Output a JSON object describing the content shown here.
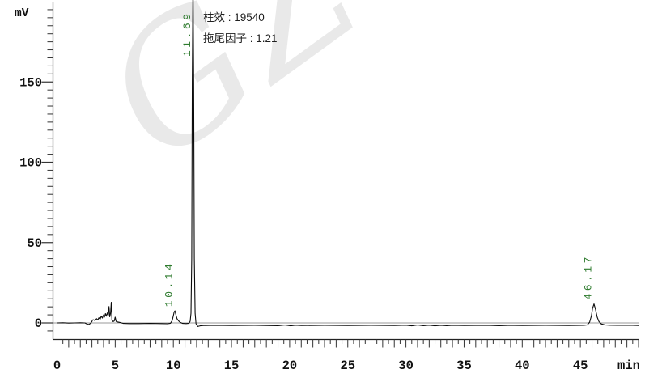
{
  "watermark": {
    "text": "GZ"
  },
  "chart_data": {
    "type": "line",
    "title": "",
    "xlabel": "min",
    "ylabel": "mV",
    "xlim": [
      0,
      50.3
    ],
    "ylim": [
      -10,
      201
    ],
    "x_major_ticks": [
      0,
      5,
      10,
      15,
      20,
      25,
      30,
      35,
      40,
      45
    ],
    "x_minor_tick_step": 0.5,
    "y_major_ticks": [
      0,
      50,
      100,
      150
    ],
    "y_minor_tick_step": 5,
    "zero_baseline": true,
    "legend": "none",
    "grid": "off",
    "annotations": [
      "柱效 : 19540",
      "拖尾因子 : 1.21"
    ],
    "peaks": [
      {
        "label": "10.14",
        "retention_min": 10.14,
        "apex_mv": 7.5,
        "clipped_at_top": false
      },
      {
        "label": "11.69",
        "retention_min": 11.69,
        "apex_mv": 215,
        "clipped_at_top": true
      },
      {
        "label": "46.17",
        "retention_min": 46.17,
        "apex_mv": 11.8,
        "clipped_at_top": false
      }
    ],
    "colors": {
      "trace": "#0b0b0b",
      "axis": "#222222",
      "tick": "#333333",
      "zero_line": "#999999",
      "peak_label": "#2e7b2e",
      "tick_label": "#111111",
      "annotation_text": "#1f1f1f",
      "watermark": "#e9e9e9",
      "background": "#ffffff"
    },
    "series": [
      {
        "name": "detector-signal",
        "points": [
          [
            0,
            0
          ],
          [
            0.5,
            0.1
          ],
          [
            1,
            -0.1
          ],
          [
            1.5,
            0
          ],
          [
            2,
            0.1
          ],
          [
            2.4,
            0
          ],
          [
            2.55,
            -0.6
          ],
          [
            2.7,
            -1
          ],
          [
            2.85,
            -0.4
          ],
          [
            3.0,
            0.8
          ],
          [
            3.05,
            1.8
          ],
          [
            3.15,
            1.9
          ],
          [
            3.25,
            1.4
          ],
          [
            3.4,
            2.6
          ],
          [
            3.5,
            1.8
          ],
          [
            3.6,
            3.2
          ],
          [
            3.7,
            2.2
          ],
          [
            3.8,
            4.2
          ],
          [
            3.9,
            3.0
          ],
          [
            4.0,
            5.0
          ],
          [
            4.08,
            3.6
          ],
          [
            4.16,
            5.8
          ],
          [
            4.24,
            4.2
          ],
          [
            4.32,
            6.2
          ],
          [
            4.4,
            4.6
          ],
          [
            4.47,
            10.2
          ],
          [
            4.53,
            3.8
          ],
          [
            4.6,
            6.0
          ],
          [
            4.66,
            12.8
          ],
          [
            4.72,
            1.8
          ],
          [
            4.82,
            0.8
          ],
          [
            4.92,
            1.2
          ],
          [
            5.0,
            3.6
          ],
          [
            5.08,
            0.9
          ],
          [
            5.2,
            0.6
          ],
          [
            5.4,
            0.3
          ],
          [
            5.7,
            -0.3
          ],
          [
            6.2,
            -0.4
          ],
          [
            7,
            -0.4
          ],
          [
            8,
            -0.3
          ],
          [
            9,
            -0.4
          ],
          [
            9.5,
            -0.5
          ],
          [
            9.75,
            -0.2
          ],
          [
            9.9,
            1.5
          ],
          [
            10.0,
            4.5
          ],
          [
            10.07,
            6.8
          ],
          [
            10.14,
            7.5
          ],
          [
            10.22,
            5.0
          ],
          [
            10.32,
            2.5
          ],
          [
            10.45,
            1.2
          ],
          [
            10.6,
            0.3
          ],
          [
            10.8,
            -0.3
          ],
          [
            11.1,
            -0.4
          ],
          [
            11.35,
            -0.2
          ],
          [
            11.45,
            1.0
          ],
          [
            11.52,
            6
          ],
          [
            11.58,
            40
          ],
          [
            11.63,
            150
          ],
          [
            11.69,
            215
          ],
          [
            11.75,
            150
          ],
          [
            11.8,
            40
          ],
          [
            11.87,
            6
          ],
          [
            11.95,
            -0.5
          ],
          [
            12.1,
            -2.2
          ],
          [
            12.3,
            -1.8
          ],
          [
            12.6,
            -1.6
          ],
          [
            13.5,
            -1.5
          ],
          [
            15,
            -1.6
          ],
          [
            17,
            -1.5
          ],
          [
            19,
            -1.7
          ],
          [
            19.6,
            -1.3
          ],
          [
            20.1,
            -1.8
          ],
          [
            20.5,
            -1.4
          ],
          [
            21,
            -1.6
          ],
          [
            23,
            -1.5
          ],
          [
            25,
            -1.6
          ],
          [
            27,
            -1.5
          ],
          [
            29,
            -1.6
          ],
          [
            30,
            -1.4
          ],
          [
            30.5,
            -1.8
          ],
          [
            31,
            -1.3
          ],
          [
            31.5,
            -1.7
          ],
          [
            32,
            -1.4
          ],
          [
            32.5,
            -1.8
          ],
          [
            33,
            -1.5
          ],
          [
            33.5,
            -1.7
          ],
          [
            34,
            -1.5
          ],
          [
            35,
            -1.6
          ],
          [
            37,
            -1.5
          ],
          [
            38,
            -1.7
          ],
          [
            39,
            -1.5
          ],
          [
            40,
            -1.6
          ],
          [
            42,
            -1.5
          ],
          [
            44,
            -1.6
          ],
          [
            45.3,
            -1.5
          ],
          [
            45.6,
            -1.2
          ],
          [
            45.8,
            0.5
          ],
          [
            45.95,
            4.5
          ],
          [
            46.05,
            9.0
          ],
          [
            46.17,
            11.8
          ],
          [
            46.3,
            8.5
          ],
          [
            46.45,
            3.5
          ],
          [
            46.6,
            0.8
          ],
          [
            46.8,
            -0.6
          ],
          [
            47.1,
            -1.2
          ],
          [
            47.5,
            -1.4
          ],
          [
            48.5,
            -1.5
          ],
          [
            49.5,
            -1.5
          ],
          [
            50.05,
            -1.6
          ]
        ]
      }
    ]
  }
}
